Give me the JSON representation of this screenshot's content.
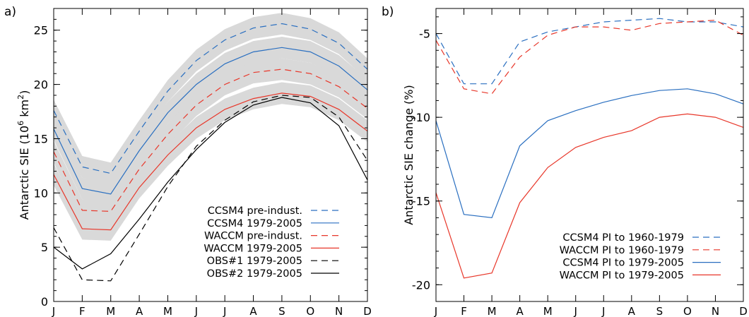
{
  "colors": {
    "ccsm4": "#2a6fc0",
    "waccm": "#e8372a",
    "obs": "#000000",
    "band": "#d9d9d9"
  },
  "chart_data": [
    {
      "panel_label": "a)",
      "type": "line",
      "ylabel": "Antarctic SIE (10",
      "ylabel_sup": "6",
      "ylabel_tail": " km",
      "ylabel_sup2": "2",
      "ylabel_end": ")",
      "x": [
        "J",
        "F",
        "M",
        "A",
        "M",
        "J",
        "J",
        "A",
        "S",
        "O",
        "N",
        "D"
      ],
      "ylim": [
        0,
        27
      ],
      "yticks": [
        0,
        5,
        10,
        15,
        20,
        25
      ],
      "grid": false,
      "legend_placement": "bottom-right",
      "series": [
        {
          "name": "CCSM4 pre-indust.",
          "color_key": "ccsm4",
          "dash": true,
          "band": true,
          "values": [
            17.6,
            12.4,
            11.8,
            15.7,
            19.4,
            22.2,
            24.1,
            25.2,
            25.6,
            25.1,
            23.8,
            21.4
          ]
        },
        {
          "name": "CCSM4 1979-2005",
          "color_key": "ccsm4",
          "dash": false,
          "band": true,
          "values": [
            15.9,
            10.4,
            9.9,
            13.9,
            17.4,
            20.0,
            21.9,
            23.0,
            23.4,
            23.0,
            21.7,
            19.5
          ]
        },
        {
          "name": "WACCM pre-indust.",
          "color_key": "waccm",
          "dash": true,
          "band": true,
          "values": [
            13.8,
            8.4,
            8.3,
            12.2,
            15.4,
            18.1,
            20.0,
            21.1,
            21.4,
            21.0,
            19.8,
            17.8
          ]
        },
        {
          "name": "WACCM 1979-2005",
          "color_key": "waccm",
          "dash": false,
          "band": true,
          "values": [
            11.7,
            6.7,
            6.6,
            10.5,
            13.5,
            16.0,
            17.7,
            18.7,
            19.2,
            18.9,
            17.7,
            15.7
          ]
        },
        {
          "name": "OBS#1 1979-2005",
          "color_key": "obs",
          "dash": true,
          "band": false,
          "values": [
            6.8,
            2.0,
            1.9,
            6.2,
            10.6,
            14.3,
            16.7,
            18.4,
            19.0,
            18.8,
            17.0,
            13.0
          ]
        },
        {
          "name": "OBS#2 1979-2005",
          "color_key": "obs",
          "dash": false,
          "band": false,
          "values": [
            5.0,
            3.0,
            4.4,
            7.6,
            11.0,
            14.0,
            16.5,
            18.1,
            18.8,
            18.3,
            16.2,
            11.2
          ]
        }
      ]
    },
    {
      "panel_label": "b)",
      "type": "line",
      "ylabel": "Antarctic SIE change (%)",
      "x": [
        "J",
        "F",
        "M",
        "A",
        "M",
        "J",
        "J",
        "A",
        "S",
        "O",
        "N",
        "D"
      ],
      "ylim": [
        -21,
        -3.5
      ],
      "yticks": [
        -20,
        -15,
        -10,
        -5
      ],
      "grid": false,
      "legend_placement": "bottom-right",
      "series": [
        {
          "name": "CCSM4 PI to 1960-1979",
          "color_key": "ccsm4",
          "dash": true,
          "values": [
            -5.0,
            -8.0,
            -8.0,
            -5.5,
            -4.9,
            -4.6,
            -4.3,
            -4.2,
            -4.1,
            -4.3,
            -4.3,
            -4.6
          ]
        },
        {
          "name": "WACCM PI to 1960-1979",
          "color_key": "waccm",
          "dash": true,
          "values": [
            -5.4,
            -8.3,
            -8.6,
            -6.4,
            -5.1,
            -4.6,
            -4.6,
            -4.8,
            -4.4,
            -4.3,
            -4.2,
            -5.1
          ]
        },
        {
          "name": "CCSM4 PI to 1979-2005",
          "color_key": "ccsm4",
          "dash": false,
          "values": [
            -10.2,
            -15.8,
            -16.0,
            -11.7,
            -10.2,
            -9.6,
            -9.1,
            -8.7,
            -8.4,
            -8.3,
            -8.6,
            -9.2
          ]
        },
        {
          "name": "WACCM PI to 1979-2005",
          "color_key": "waccm",
          "dash": false,
          "values": [
            -14.5,
            -19.6,
            -19.3,
            -15.1,
            -13.0,
            -11.8,
            -11.2,
            -10.8,
            -10.0,
            -9.8,
            -10.0,
            -10.6
          ]
        }
      ]
    }
  ]
}
